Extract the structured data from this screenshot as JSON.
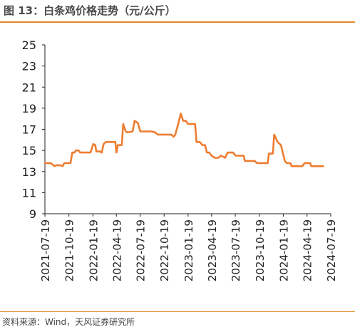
{
  "title": "图 13：白条鸡价格走势（元/公斤）",
  "source": "资料来源：Wind，天风证券研究所",
  "colors": {
    "accent": "#ED7D31",
    "title_rule": "#E08A2C",
    "axis": "#222222"
  },
  "chart_data": {
    "type": "line",
    "title": "",
    "xlabel": "",
    "ylabel": "",
    "ylim": [
      9,
      25
    ],
    "yticks": [
      9,
      11,
      13,
      15,
      17,
      19,
      21,
      23,
      25
    ],
    "xlim": [
      "2021-07-19",
      "2024-07-19"
    ],
    "xticks": [
      "2021-07-19",
      "2021-10-19",
      "2022-01-19",
      "2022-04-19",
      "2022-07-19",
      "2022-10-19",
      "2023-01-19",
      "2023-04-19",
      "2023-07-19",
      "2023-10-19",
      "2024-01-19",
      "2024-04-19",
      "2024-07-19"
    ],
    "grid": false,
    "legend": "none",
    "series": [
      {
        "color": "#ED7D31",
        "points": [
          [
            "2021-07-19",
            13.8
          ],
          [
            "2021-08-10",
            13.8
          ],
          [
            "2021-08-25",
            13.5
          ],
          [
            "2021-09-01",
            13.6
          ],
          [
            "2021-09-15",
            13.6
          ],
          [
            "2021-09-25",
            13.5
          ],
          [
            "2021-10-01",
            13.8
          ],
          [
            "2021-10-25",
            13.8
          ],
          [
            "2021-11-01",
            14.8
          ],
          [
            "2021-11-10",
            14.8
          ],
          [
            "2021-11-15",
            15.0
          ],
          [
            "2021-11-25",
            15.0
          ],
          [
            "2021-12-01",
            14.8
          ],
          [
            "2022-01-10",
            14.8
          ],
          [
            "2022-01-20",
            15.6
          ],
          [
            "2022-01-28",
            15.5
          ],
          [
            "2022-02-01",
            14.9
          ],
          [
            "2022-02-15",
            14.9
          ],
          [
            "2022-02-22",
            14.8
          ],
          [
            "2022-03-01",
            15.6
          ],
          [
            "2022-03-10",
            15.8
          ],
          [
            "2022-04-01",
            15.8
          ],
          [
            "2022-04-15",
            15.8
          ],
          [
            "2022-04-19",
            14.8
          ],
          [
            "2022-04-25",
            15.5
          ],
          [
            "2022-05-10",
            15.5
          ],
          [
            "2022-05-15",
            17.5
          ],
          [
            "2022-05-25",
            16.8
          ],
          [
            "2022-06-01",
            16.7
          ],
          [
            "2022-06-20",
            16.8
          ],
          [
            "2022-06-28",
            17.8
          ],
          [
            "2022-07-10",
            17.6
          ],
          [
            "2022-07-20",
            16.8
          ],
          [
            "2022-09-01",
            16.8
          ],
          [
            "2022-09-15",
            16.7
          ],
          [
            "2022-09-25",
            16.5
          ],
          [
            "2022-10-10",
            16.5
          ],
          [
            "2022-11-15",
            16.5
          ],
          [
            "2022-11-25",
            16.3
          ],
          [
            "2022-12-01",
            16.5
          ],
          [
            "2022-12-12",
            17.5
          ],
          [
            "2022-12-22",
            18.5
          ],
          [
            "2022-12-31",
            17.8
          ],
          [
            "2023-01-10",
            17.8
          ],
          [
            "2023-01-19",
            17.5
          ],
          [
            "2023-02-15",
            17.5
          ],
          [
            "2023-02-20",
            15.8
          ],
          [
            "2023-03-05",
            15.8
          ],
          [
            "2023-03-15",
            15.5
          ],
          [
            "2023-03-25",
            15.5
          ],
          [
            "2023-04-01",
            14.8
          ],
          [
            "2023-04-10",
            14.8
          ],
          [
            "2023-04-19",
            14.5
          ],
          [
            "2023-05-01",
            14.3
          ],
          [
            "2023-05-15",
            14.3
          ],
          [
            "2023-05-25",
            14.5
          ],
          [
            "2023-06-10",
            14.3
          ],
          [
            "2023-06-20",
            14.8
          ],
          [
            "2023-07-10",
            14.8
          ],
          [
            "2023-07-20",
            14.5
          ],
          [
            "2023-08-20",
            14.5
          ],
          [
            "2023-08-25",
            14.0
          ],
          [
            "2023-10-01",
            14.0
          ],
          [
            "2023-10-10",
            13.8
          ],
          [
            "2023-11-15",
            13.8
          ],
          [
            "2023-11-20",
            13.8
          ],
          [
            "2023-11-25",
            14.7
          ],
          [
            "2023-12-10",
            14.7
          ],
          [
            "2023-12-15",
            16.5
          ],
          [
            "2023-12-28",
            15.8
          ],
          [
            "2024-01-10",
            15.5
          ],
          [
            "2024-01-25",
            14.0
          ],
          [
            "2024-02-01",
            13.8
          ],
          [
            "2024-02-15",
            13.8
          ],
          [
            "2024-02-20",
            13.5
          ],
          [
            "2024-04-01",
            13.5
          ],
          [
            "2024-04-10",
            13.8
          ],
          [
            "2024-05-01",
            13.8
          ],
          [
            "2024-05-05",
            13.5
          ],
          [
            "2024-06-15",
            13.5
          ],
          [
            "2024-06-20",
            13.5
          ]
        ]
      }
    ]
  }
}
